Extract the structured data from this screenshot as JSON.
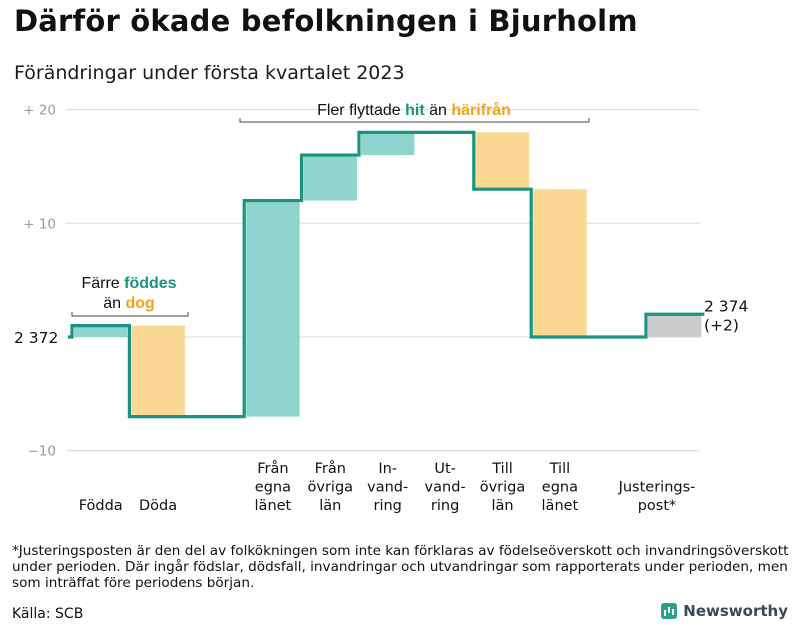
{
  "title": "Därför ökade befolkningen i Bjurholm",
  "subtitle": "Förändringar under första kvartalet 2023",
  "chart_data": {
    "type": "waterfall",
    "start_value": 2372,
    "start_label": "2 372",
    "end_label_line1": "2 374",
    "end_label_line2": "(+2)",
    "y_ticks": [
      {
        "value": 20,
        "label": "+ 20"
      },
      {
        "value": 10,
        "label": "+ 10"
      },
      {
        "value": -10,
        "label": "−10"
      }
    ],
    "ylim": [
      -10,
      20
    ],
    "categories": [
      {
        "lines": [
          "Födda"
        ],
        "value": 1
      },
      {
        "lines": [
          "Döda"
        ],
        "value": -8
      },
      {
        "lines": [
          "",
          ""
        ],
        "value": 0
      },
      {
        "lines": [
          "Från",
          "egna",
          "länet"
        ],
        "value": 19
      },
      {
        "lines": [
          "Från",
          "övriga",
          "län"
        ],
        "value": 4
      },
      {
        "lines": [
          "In-",
          "vand-",
          "ring"
        ],
        "value": 2
      },
      {
        "lines": [
          "Ut-",
          "vand-",
          "ring"
        ],
        "value": 0
      },
      {
        "lines": [
          "Till",
          "övriga",
          "län"
        ],
        "value": -5
      },
      {
        "lines": [
          "Till",
          "egna",
          "länet"
        ],
        "value": -13
      },
      {
        "lines": [
          ""
        ],
        "value": 0
      },
      {
        "lines": [
          "Justerings-",
          "post*"
        ],
        "value": 2
      }
    ],
    "annotations": [
      {
        "lines": [
          [
            {
              "text": "Färre ",
              "style": "plain"
            },
            {
              "text": "föddes",
              "style": "teal"
            }
          ],
          [
            {
              "text": "än ",
              "style": "plain"
            },
            {
              "text": "dog",
              "style": "orange"
            }
          ]
        ]
      },
      {
        "lines": [
          [
            {
              "text": "Fler flyttade ",
              "style": "plain"
            },
            {
              "text": "hit",
              "style": "teal"
            },
            {
              "text": " än ",
              "style": "plain"
            },
            {
              "text": "härifrån",
              "style": "orange"
            }
          ]
        ]
      }
    ],
    "colors": {
      "increase": "#8fd5cd",
      "decrease": "#fad792",
      "adjustment": "#cccccc",
      "line": "#1a9480",
      "teal_text": "#1a9480",
      "orange_text": "#f5a31a",
      "grid": "#d9d9d9",
      "tick_text": "#9a9a9a"
    }
  },
  "footnote": "*Justeringsposten är den del av folkökningen som inte kan förklaras av födelseöverskott och invandringsöverskott under perioden. Där ingår födslar, dödsfall, invandringar och utvandringar som rapporterats under perioden, men som inträffat före periodens början.",
  "source": "Källa: SCB",
  "brand": "Newsworthy"
}
